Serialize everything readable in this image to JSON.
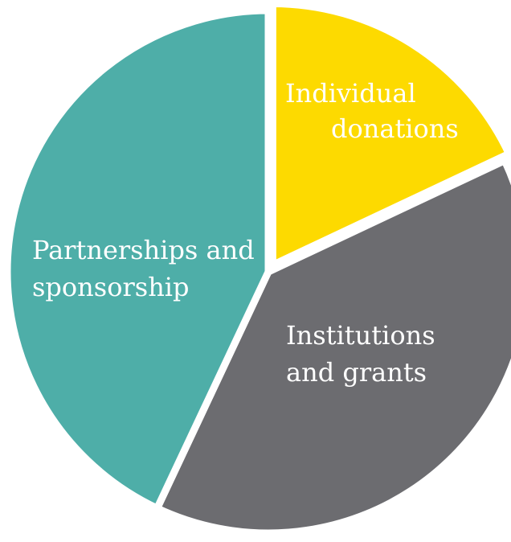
{
  "chart_data": {
    "type": "pie",
    "title": "",
    "legend": "none",
    "slices": [
      {
        "label_lines": [
          "Individual",
          "donations"
        ],
        "value": 18,
        "color": "#FDDA00"
      },
      {
        "label_lines": [
          "Institutions",
          "and grants"
        ],
        "value": 39,
        "color": "#6C6C70"
      },
      {
        "label_lines": [
          "Partnerships and",
          "sponsorship"
        ],
        "value": 43,
        "color": "#4EAEA8"
      }
    ]
  }
}
